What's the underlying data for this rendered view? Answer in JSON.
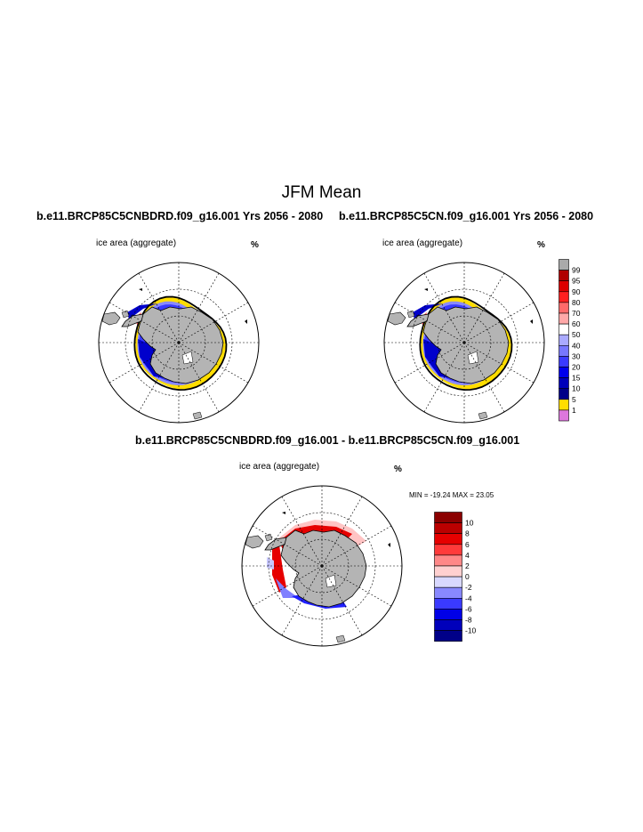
{
  "main_title": "JFM Mean",
  "panels": [
    {
      "title": "b.e11.BRCP85C5CNBDRD.f09_g16.001  Yrs 2056 - 2080",
      "variable_label": "ice area  (aggregate)",
      "units": "%"
    },
    {
      "title": "b.e11.BRCP85C5CN.f09_g16.001  Yrs 2056 - 2080",
      "variable_label": "ice area  (aggregate)",
      "units": "%"
    }
  ],
  "diff_panel": {
    "title": "b.e11.BRCP85C5CNBDRD.f09_g16.001 - b.e11.BRCP85C5CN.f09_g16.001",
    "variable_label": "ice area  (aggregate)",
    "units": "%",
    "min_max": "MIN = -19.24 MAX =  23.05"
  },
  "colorbar_ice": {
    "labels": [
      "99",
      "95",
      "90",
      "80",
      "70",
      "60",
      "50",
      "40",
      "30",
      "20",
      "15",
      "10",
      "5",
      "1"
    ],
    "colors": [
      "#aaaaaa",
      "#b00000",
      "#dd0000",
      "#ff2020",
      "#ff6a6a",
      "#ffa8a8",
      "#ffffff",
      "#aaaaff",
      "#7777ff",
      "#3a3aff",
      "#0000ee",
      "#0000bb",
      "#000088",
      "#ffdd00",
      "#dd77dd"
    ]
  },
  "colorbar_diff": {
    "labels": [
      "10",
      "8",
      "6",
      "4",
      "2",
      "0",
      "-2",
      "-4",
      "-6",
      "-8",
      "-10"
    ],
    "colors": [
      "#8b0000",
      "#bb0000",
      "#e60000",
      "#ff3a3a",
      "#ff8888",
      "#ffd0d0",
      "#d8d8ff",
      "#8888ff",
      "#3a3aff",
      "#0000e6",
      "#0000bb",
      "#000088"
    ]
  },
  "map_colors": {
    "land": "#b4b4b4",
    "ice_high": "#0000cc",
    "ice_mid": "#3a3aff",
    "ice_low": "#8a8aff",
    "ice_edge": "#ffdd00",
    "diff_pos": "#e60000",
    "diff_neg": "#2020ff"
  }
}
